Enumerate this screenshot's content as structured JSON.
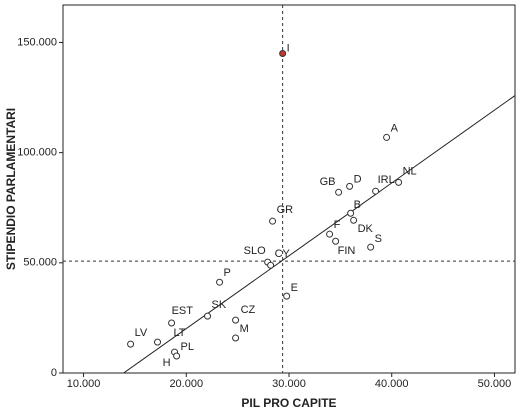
{
  "chart_data": {
    "type": "scatter",
    "x_label": "PIL PRO CAPITE",
    "y_label": "STIPENDIO PARLAMENTARI",
    "xlim": [
      8000,
      52000
    ],
    "ylim": [
      0,
      167000
    ],
    "xticks": [
      {
        "value": 10000,
        "label": "10.000"
      },
      {
        "value": 20000,
        "label": "20.000"
      },
      {
        "value": 30000,
        "label": "30.000"
      },
      {
        "value": 40000,
        "label": "40.000"
      },
      {
        "value": 50000,
        "label": "50.000"
      }
    ],
    "yticks": [
      0,
      {
        "value": 50000,
        "label": "50.000"
      },
      {
        "value": 100000,
        "label": "100.000"
      },
      {
        "value": 150000,
        "label": "150.000"
      }
    ],
    "point_labels": [
      "I",
      "A",
      "NL",
      "IRL",
      "D",
      "GB",
      "B",
      "F",
      "DK",
      "S",
      "FIN",
      "GR",
      "SLO",
      "CY",
      "P",
      "E",
      "SK",
      "CZ",
      "EST",
      "M",
      "LV",
      "LT",
      "PL",
      "H"
    ],
    "x": [
      29380,
      39500,
      40670,
      38430,
      35900,
      34830,
      36000,
      33950,
      36290,
      37950,
      34540,
      28400,
      27920,
      28210,
      23240,
      29770,
      22070,
      24800,
      18570,
      24800,
      14580,
      17200,
      18860,
      19060
    ],
    "y": [
      145000,
      106900,
      86500,
      82500,
      84700,
      82000,
      72500,
      63000,
      69300,
      57100,
      59800,
      68900,
      50300,
      48900,
      41200,
      34900,
      25800,
      24000,
      22700,
      15900,
      13100,
      14000,
      9500,
      7700
    ],
    "point_colors": [
      "#c0392b",
      "#ffffff",
      "#ffffff",
      "#ffffff",
      "#ffffff",
      "#ffffff",
      "#ffffff",
      "#ffffff",
      "#ffffff",
      "#ffffff",
      "#ffffff",
      "#ffffff",
      "#ffffff",
      "#ffffff",
      "#ffffff",
      "#ffffff",
      "#ffffff",
      "#ffffff",
      "#ffffff",
      "#ffffff",
      "#ffffff",
      "#ffffff",
      "#ffffff",
      "#ffffff"
    ],
    "fit_line": {
      "x": [
        13900,
        52000
      ],
      "y": [
        0,
        125900
      ]
    },
    "reference_lines": {
      "x": 29380,
      "y": 50750
    }
  }
}
